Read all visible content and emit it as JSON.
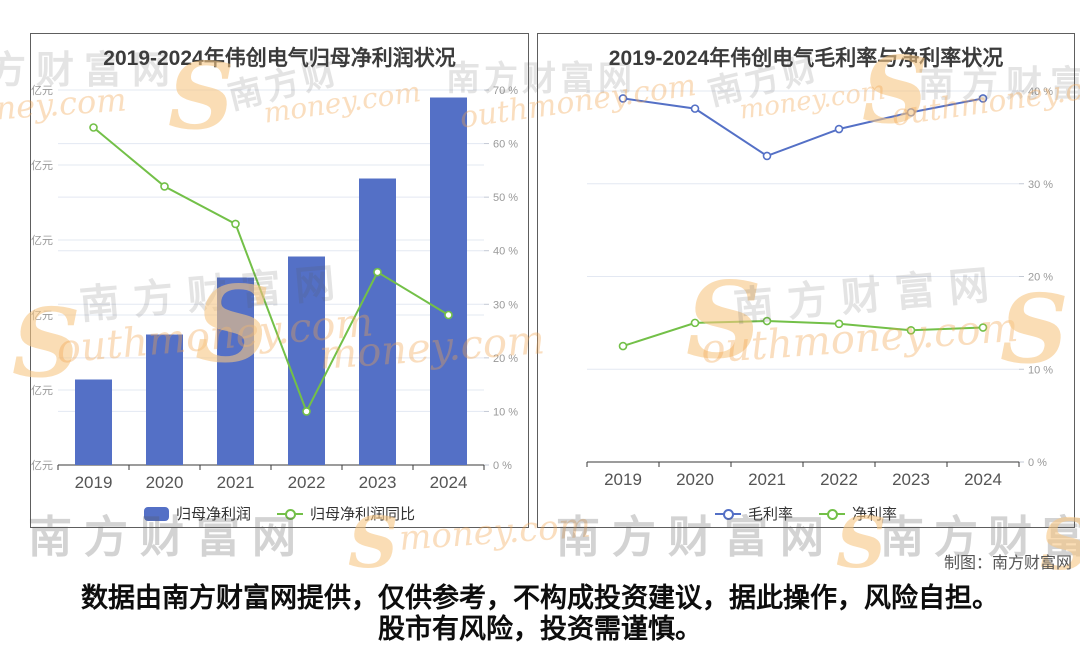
{
  "watermark": {
    "s": "S",
    "cjk": "南方财富网",
    "cjk_short": "南方财",
    "latin": "outhmoney.com",
    "latin_short": "money.com"
  },
  "credit": "制图：南方财富网",
  "disclaimer": {
    "line1": "数据由南方财富网提供，仅供参考，不构成投资建议，据此操作，风险自担。",
    "line2": "股市有风险，投资需谨慎。"
  },
  "chart_data": [
    {
      "type": "bar",
      "title": "2019-2024年伟创电气归母净利润状况",
      "categories": [
        "2019",
        "2020",
        "2021",
        "2022",
        "2023",
        "2024"
      ],
      "series": [
        {
          "name": "归母净利润",
          "type": "bar",
          "axis": "left",
          "color": "#5470c6",
          "values": [
            0.57,
            0.87,
            1.25,
            1.39,
            1.91,
            2.45
          ]
        },
        {
          "name": "归母净利润同比",
          "type": "line",
          "axis": "right",
          "color": "#73c048",
          "values": [
            63,
            52,
            45,
            10,
            36,
            28
          ]
        }
      ],
      "left_axis": {
        "min": 0,
        "max": 2.5,
        "step": 0.5,
        "suffix": " 亿元"
      },
      "right_axis": {
        "min": 0,
        "max": 70,
        "step": 10,
        "suffix": " %"
      },
      "grid": true,
      "legend_position": "bottom"
    },
    {
      "type": "line",
      "title": "2019-2024年伟创电气毛利率与净利率状况",
      "categories": [
        "2019",
        "2020",
        "2021",
        "2022",
        "2023",
        "2024"
      ],
      "series": [
        {
          "name": "毛利率",
          "type": "line",
          "axis": "right",
          "color": "#5470c6",
          "values": [
            39.2,
            38.1,
            33.0,
            35.9,
            37.7,
            39.2
          ]
        },
        {
          "name": "净利率",
          "type": "line",
          "axis": "right",
          "color": "#73c048",
          "values": [
            12.5,
            15.0,
            15.2,
            14.9,
            14.2,
            14.5
          ]
        }
      ],
      "right_axis": {
        "min": 0,
        "max": 40,
        "step": 10,
        "suffix": " %"
      },
      "grid": true,
      "legend_position": "bottom"
    }
  ]
}
